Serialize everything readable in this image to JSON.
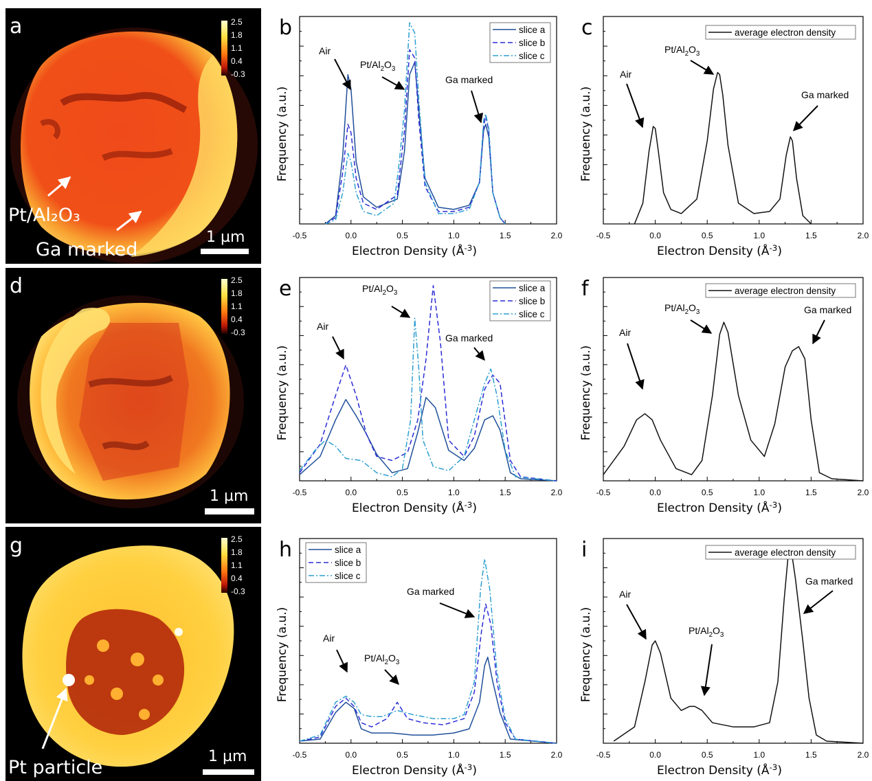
{
  "colors": {
    "slice_a": "#1f4e9a",
    "slice_b": "#2b2bd6",
    "slice_c": "#2e9fd0",
    "average": "#111111"
  },
  "axis_common": {
    "xlabel": "Electron Density (Å⁻³)",
    "ylabel": "Frequency (a.u.)",
    "xticks": [
      "-0.5",
      "0.0",
      "0.5",
      "1.0",
      "1.5",
      "2.0"
    ]
  },
  "images": [
    {
      "letter": "a",
      "colorbar_ticks": [
        "2.5",
        "1.8",
        "1.1",
        "0.4",
        "-0.3"
      ],
      "scalebar_label": "1 µm",
      "labels": [
        "Pt/Al₂O₃",
        "Ga marked"
      ]
    },
    {
      "letter": "d",
      "colorbar_ticks": [
        "2.5",
        "1.8",
        "1.1",
        "0.4",
        "-0.3"
      ],
      "scalebar_label": "1 µm",
      "labels": []
    },
    {
      "letter": "g",
      "colorbar_ticks": [
        "2.5",
        "1.8",
        "1.1",
        "0.4",
        "-0.3"
      ],
      "scalebar_label": "1 µm",
      "labels": [
        "Pt particle"
      ]
    }
  ],
  "chart_data": [
    {
      "panel": "b",
      "type": "line",
      "xlabel": "Electron Density (Å⁻³)",
      "ylabel": "Frequency (a.u.)",
      "xlim": [
        -0.5,
        2.0
      ],
      "ylim": [
        0,
        1
      ],
      "legend": "top-right",
      "annotations": [
        "Air",
        "Pt/Al₂O₃",
        "Ga marked"
      ],
      "series": [
        {
          "name": "slice a",
          "x": [
            -0.25,
            -0.15,
            -0.08,
            -0.03,
            0.0,
            0.05,
            0.12,
            0.25,
            0.45,
            0.52,
            0.57,
            0.62,
            0.66,
            0.72,
            0.85,
            1.0,
            1.15,
            1.25,
            1.29,
            1.31,
            1.34,
            1.38,
            1.45,
            1.5
          ],
          "y": [
            0,
            0.04,
            0.33,
            0.72,
            0.65,
            0.3,
            0.13,
            0.08,
            0.12,
            0.35,
            0.72,
            0.78,
            0.55,
            0.22,
            0.08,
            0.07,
            0.09,
            0.2,
            0.45,
            0.48,
            0.42,
            0.15,
            0.03,
            0
          ]
        },
        {
          "name": "slice b",
          "x": [
            -0.25,
            -0.15,
            -0.08,
            -0.03,
            0.0,
            0.05,
            0.12,
            0.25,
            0.45,
            0.52,
            0.57,
            0.62,
            0.66,
            0.72,
            0.85,
            1.0,
            1.15,
            1.25,
            1.29,
            1.31,
            1.34,
            1.38,
            1.45,
            1.5
          ],
          "y": [
            0,
            0.03,
            0.25,
            0.48,
            0.44,
            0.22,
            0.1,
            0.07,
            0.14,
            0.45,
            0.84,
            0.8,
            0.5,
            0.18,
            0.06,
            0.06,
            0.08,
            0.2,
            0.47,
            0.52,
            0.45,
            0.15,
            0.03,
            0
          ]
        },
        {
          "name": "slice c",
          "x": [
            -0.25,
            -0.15,
            -0.08,
            -0.03,
            0.0,
            0.05,
            0.12,
            0.25,
            0.42,
            0.47,
            0.52,
            0.57,
            0.62,
            0.66,
            0.72,
            0.85,
            1.0,
            1.15,
            1.25,
            1.29,
            1.31,
            1.34,
            1.38,
            1.45,
            1.5
          ],
          "y": [
            0,
            0.02,
            0.15,
            0.34,
            0.3,
            0.15,
            0.06,
            0.04,
            0.1,
            0.3,
            0.55,
            0.97,
            0.92,
            0.6,
            0.2,
            0.05,
            0.05,
            0.07,
            0.2,
            0.5,
            0.53,
            0.46,
            0.15,
            0.03,
            0
          ]
        }
      ]
    },
    {
      "panel": "c",
      "type": "line",
      "xlabel": "Electron Density (Å⁻³)",
      "ylabel": "Frequency (a.u.)",
      "xlim": [
        -0.5,
        2.0
      ],
      "ylim": [
        0,
        1
      ],
      "legend": "top-right",
      "annotations": [
        "Air",
        "Pt/Al₂O₃",
        "Ga marked"
      ],
      "series": [
        {
          "name": "average electron density",
          "x": [
            -0.2,
            -0.12,
            -0.06,
            -0.02,
            0.0,
            0.03,
            0.08,
            0.15,
            0.25,
            0.4,
            0.5,
            0.56,
            0.6,
            0.62,
            0.65,
            0.7,
            0.8,
            0.95,
            1.1,
            1.2,
            1.26,
            1.3,
            1.32,
            1.36,
            1.42,
            1.5
          ],
          "y": [
            0,
            0.1,
            0.35,
            0.47,
            0.46,
            0.35,
            0.15,
            0.07,
            0.05,
            0.12,
            0.4,
            0.65,
            0.73,
            0.72,
            0.62,
            0.38,
            0.1,
            0.05,
            0.06,
            0.12,
            0.33,
            0.42,
            0.4,
            0.22,
            0.04,
            0
          ]
        }
      ]
    },
    {
      "panel": "e",
      "type": "line",
      "xlabel": "Electron Density (Å⁻³)",
      "ylabel": "Frequency (a.u.)",
      "xlim": [
        -0.5,
        2.0
      ],
      "ylim": [
        0,
        1
      ],
      "legend": "top-right",
      "annotations": [
        "Air",
        "Pt/Al₂O₃",
        "Ga marked"
      ],
      "series": [
        {
          "name": "slice a",
          "x": [
            -0.5,
            -0.3,
            -0.15,
            -0.05,
            0.05,
            0.15,
            0.25,
            0.4,
            0.55,
            0.65,
            0.73,
            0.82,
            0.95,
            1.1,
            1.2,
            1.3,
            1.38,
            1.45,
            1.55,
            1.65,
            2.0
          ],
          "y": [
            0.03,
            0.12,
            0.3,
            0.4,
            0.32,
            0.23,
            0.13,
            0.04,
            0.06,
            0.24,
            0.41,
            0.36,
            0.15,
            0.1,
            0.16,
            0.3,
            0.32,
            0.25,
            0.04,
            0.01,
            0
          ]
        },
        {
          "name": "slice b",
          "x": [
            -0.5,
            -0.3,
            -0.15,
            -0.05,
            0.05,
            0.15,
            0.25,
            0.4,
            0.55,
            0.65,
            0.73,
            0.8,
            0.87,
            0.95,
            1.1,
            1.2,
            1.3,
            1.38,
            1.45,
            1.55,
            1.65,
            2.0
          ],
          "y": [
            0.04,
            0.18,
            0.42,
            0.57,
            0.42,
            0.23,
            0.12,
            0.1,
            0.14,
            0.3,
            0.6,
            0.96,
            0.68,
            0.2,
            0.12,
            0.22,
            0.45,
            0.52,
            0.48,
            0.1,
            0.02,
            0
          ]
        },
        {
          "name": "slice c",
          "x": [
            -0.5,
            -0.35,
            -0.25,
            -0.15,
            -0.05,
            0.1,
            0.25,
            0.4,
            0.5,
            0.58,
            0.62,
            0.66,
            0.7,
            0.8,
            0.95,
            1.1,
            1.2,
            1.3,
            1.36,
            1.42,
            1.5,
            1.6,
            2.0
          ],
          "y": [
            0.05,
            0.15,
            0.2,
            0.17,
            0.11,
            0.1,
            0.04,
            0.02,
            0.06,
            0.3,
            0.8,
            0.55,
            0.2,
            0.07,
            0.05,
            0.12,
            0.3,
            0.48,
            0.55,
            0.42,
            0.15,
            0.02,
            0
          ]
        }
      ]
    },
    {
      "panel": "f",
      "type": "line",
      "xlabel": "Electron Density (Å⁻³)",
      "ylabel": "Frequency (a.u.)",
      "xlim": [
        -0.5,
        2.0
      ],
      "ylim": [
        0,
        1
      ],
      "legend": "top-right",
      "annotations": [
        "Air",
        "Pt/Al₂O₃",
        "Ga marked"
      ],
      "series": [
        {
          "name": "average electron density",
          "x": [
            -0.5,
            -0.3,
            -0.18,
            -0.1,
            -0.03,
            0.05,
            0.2,
            0.35,
            0.45,
            0.55,
            0.62,
            0.66,
            0.7,
            0.8,
            0.92,
            1.05,
            1.15,
            1.25,
            1.32,
            1.38,
            1.44,
            1.5,
            1.58,
            1.7,
            2.0
          ],
          "y": [
            0.03,
            0.17,
            0.3,
            0.33,
            0.3,
            0.2,
            0.06,
            0.03,
            0.1,
            0.42,
            0.72,
            0.78,
            0.73,
            0.42,
            0.2,
            0.12,
            0.28,
            0.56,
            0.64,
            0.66,
            0.6,
            0.3,
            0.04,
            0.01,
            0
          ]
        }
      ]
    },
    {
      "panel": "h",
      "type": "line",
      "xlabel": "Electron Density (Å⁻³)",
      "ylabel": "Frequency (a.u.)",
      "xlim": [
        -0.5,
        2.0
      ],
      "ylim": [
        0,
        1
      ],
      "legend": "top-left",
      "annotations": [
        "Air",
        "Pt/Al₂O₃",
        "Ga marked"
      ],
      "series": [
        {
          "name": "slice a",
          "x": [
            -0.5,
            -0.3,
            -0.15,
            -0.05,
            0.03,
            0.1,
            0.2,
            0.4,
            0.6,
            0.8,
            1.0,
            1.15,
            1.25,
            1.3,
            1.33,
            1.38,
            1.45,
            1.55,
            2.0
          ],
          "y": [
            0.01,
            0.02,
            0.15,
            0.2,
            0.17,
            0.07,
            0.05,
            0.05,
            0.04,
            0.04,
            0.05,
            0.07,
            0.2,
            0.38,
            0.42,
            0.3,
            0.15,
            0.02,
            0
          ]
        },
        {
          "name": "slice b",
          "x": [
            -0.5,
            -0.3,
            -0.15,
            -0.05,
            0.03,
            0.1,
            0.2,
            0.35,
            0.45,
            0.55,
            0.7,
            0.9,
            1.1,
            1.2,
            1.27,
            1.31,
            1.36,
            1.42,
            1.5,
            1.6,
            2.0
          ],
          "y": [
            0.01,
            0.03,
            0.18,
            0.22,
            0.18,
            0.1,
            0.08,
            0.12,
            0.2,
            0.12,
            0.1,
            0.09,
            0.12,
            0.25,
            0.55,
            0.68,
            0.58,
            0.3,
            0.1,
            0.02,
            0
          ]
        },
        {
          "name": "slice c",
          "x": [
            -0.5,
            -0.3,
            -0.15,
            -0.05,
            0.03,
            0.1,
            0.2,
            0.3,
            0.45,
            0.6,
            0.8,
            1.0,
            1.1,
            1.2,
            1.26,
            1.3,
            1.35,
            1.42,
            1.5,
            1.6,
            2.0
          ],
          "y": [
            0.01,
            0.04,
            0.2,
            0.23,
            0.2,
            0.14,
            0.13,
            0.13,
            0.16,
            0.14,
            0.12,
            0.12,
            0.14,
            0.3,
            0.75,
            0.9,
            0.75,
            0.35,
            0.12,
            0.02,
            0
          ]
        }
      ]
    },
    {
      "panel": "i",
      "type": "line",
      "xlabel": "Electron Density (Å⁻³)",
      "ylabel": "Frequency (a.u.)",
      "xlim": [
        -0.5,
        2.0
      ],
      "ylim": [
        0,
        1
      ],
      "legend": "top-right",
      "annotations": [
        "Air",
        "Pt/Al₂O₃",
        "Ga marked"
      ],
      "series": [
        {
          "name": "average electron density",
          "x": [
            -0.4,
            -0.2,
            -0.1,
            -0.03,
            0.0,
            0.05,
            0.15,
            0.25,
            0.33,
            0.38,
            0.45,
            0.55,
            0.75,
            0.95,
            1.1,
            1.18,
            1.24,
            1.28,
            1.31,
            1.35,
            1.42,
            1.48,
            1.55,
            1.65,
            2.0
          ],
          "y": [
            0.01,
            0.08,
            0.3,
            0.48,
            0.5,
            0.44,
            0.22,
            0.16,
            0.18,
            0.18,
            0.16,
            0.1,
            0.08,
            0.08,
            0.1,
            0.3,
            0.7,
            0.92,
            0.94,
            0.8,
            0.5,
            0.22,
            0.04,
            0.01,
            0
          ]
        }
      ]
    }
  ]
}
